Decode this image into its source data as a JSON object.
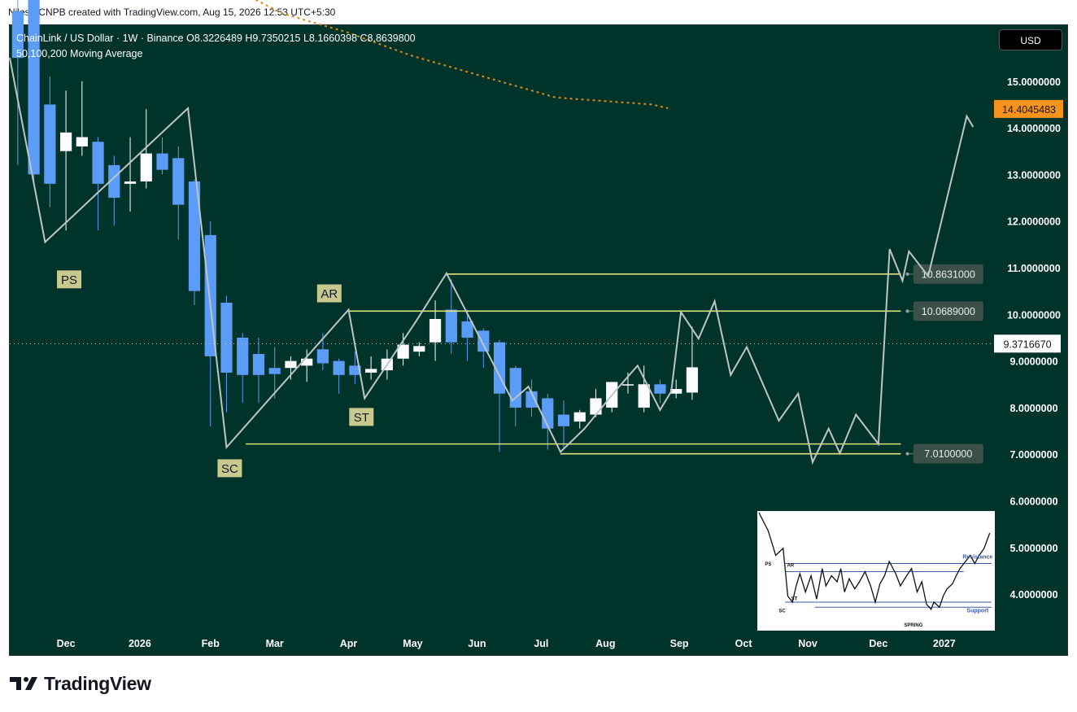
{
  "header": {
    "attribution": "Nilesh-CNPB created with TradingView.com, Aug 15, 2026 12:53 UTC+5:30"
  },
  "legend": {
    "line1": "ChainLink / US Dollar · 1W · Binance  O8.3226489  H9.7350215  L8.1660398  C8.8639800",
    "line2": "50,100,200 Moving Average"
  },
  "currency": "USD",
  "brand": {
    "name": "TradingView",
    "logo_icon": "tradingview-logo-icon"
  },
  "colors": {
    "background": "#00332a",
    "bull": "#ffffff",
    "bear": "#5b9cf6",
    "wyckoff_path": "#bfc5c5",
    "levels": "#e2e27a",
    "ma": "#d98a1a",
    "price_tag": "#f7931a"
  },
  "chart_data": {
    "type": "candlestick",
    "symbol": "ChainLink / US Dollar",
    "interval": "1W",
    "exchange": "Binance",
    "ohlc_last": {
      "open": 8.3226489,
      "high": 9.7350215,
      "low": 8.1660398,
      "close": 8.86398
    },
    "y_axis": {
      "ticks": [
        "15.0000000",
        "14.0000000",
        "13.0000000",
        "12.0000000",
        "11.0000000",
        "10.0000000",
        "9.0000000",
        "8.0000000",
        "7.0000000",
        "6.0000000",
        "5.0000000",
        "4.0000000"
      ],
      "range": [
        3.2,
        16.2
      ]
    },
    "x_axis": {
      "ticks": [
        {
          "label": "Dec",
          "t": 3
        },
        {
          "label": "2026",
          "t": 7.6
        },
        {
          "label": "Feb",
          "t": 12
        },
        {
          "label": "Mar",
          "t": 16
        },
        {
          "label": "Apr",
          "t": 20.6
        },
        {
          "label": "May",
          "t": 24.6
        },
        {
          "label": "Jun",
          "t": 28.6
        },
        {
          "label": "Jul",
          "t": 32.6
        },
        {
          "label": "Aug",
          "t": 36.6
        },
        {
          "label": "Sep",
          "t": 41.2
        },
        {
          "label": "Oct",
          "t": 45.2
        },
        {
          "label": "Nov",
          "t": 49.2
        },
        {
          "label": "Dec",
          "t": 53.6
        },
        {
          "label": "2027",
          "t": 57.7
        }
      ],
      "range": [
        -0.5,
        60.8
      ]
    },
    "candles": [
      {
        "t": 0,
        "o": 16.5,
        "h": 16.8,
        "l": 13.2,
        "c": 15.5
      },
      {
        "t": 1,
        "o": 16.8,
        "h": 17.0,
        "l": 12.8,
        "c": 13.0
      },
      {
        "t": 2,
        "o": 14.5,
        "h": 15.1,
        "l": 12.3,
        "c": 12.8
      },
      {
        "t": 3,
        "o": 13.5,
        "h": 14.8,
        "l": 11.8,
        "c": 13.9
      },
      {
        "t": 4,
        "o": 13.6,
        "h": 15.0,
        "l": 13.4,
        "c": 13.8
      },
      {
        "t": 5,
        "o": 13.7,
        "h": 13.8,
        "l": 11.8,
        "c": 12.8
      },
      {
        "t": 6,
        "o": 13.2,
        "h": 13.4,
        "l": 11.9,
        "c": 12.5
      },
      {
        "t": 7,
        "o": 12.8,
        "h": 13.8,
        "l": 12.2,
        "c": 12.85
      },
      {
        "t": 8,
        "o": 12.85,
        "h": 14.4,
        "l": 12.7,
        "c": 13.45
      },
      {
        "t": 9,
        "o": 13.45,
        "h": 13.8,
        "l": 13.0,
        "c": 13.1
      },
      {
        "t": 10,
        "o": 13.35,
        "h": 13.6,
        "l": 11.6,
        "c": 12.35
      },
      {
        "t": 11,
        "o": 12.85,
        "h": 12.9,
        "l": 10.2,
        "c": 10.5
      },
      {
        "t": 12,
        "o": 11.7,
        "h": 12.0,
        "l": 7.6,
        "c": 9.1
      },
      {
        "t": 13,
        "o": 10.25,
        "h": 10.4,
        "l": 7.9,
        "c": 8.75
      },
      {
        "t": 14,
        "o": 9.5,
        "h": 9.6,
        "l": 8.1,
        "c": 8.7
      },
      {
        "t": 15,
        "o": 9.15,
        "h": 9.5,
        "l": 8.1,
        "c": 8.7
      },
      {
        "t": 16,
        "o": 8.85,
        "h": 9.3,
        "l": 8.2,
        "c": 8.72
      },
      {
        "t": 17,
        "o": 8.85,
        "h": 9.1,
        "l": 8.6,
        "c": 9.0
      },
      {
        "t": 18,
        "o": 8.9,
        "h": 9.25,
        "l": 8.55,
        "c": 9.05
      },
      {
        "t": 19,
        "o": 9.25,
        "h": 9.6,
        "l": 8.8,
        "c": 8.95
      },
      {
        "t": 20,
        "o": 9.0,
        "h": 9.05,
        "l": 8.3,
        "c": 8.7
      },
      {
        "t": 21,
        "o": 8.9,
        "h": 9.2,
        "l": 8.5,
        "c": 8.7
      },
      {
        "t": 22,
        "o": 8.75,
        "h": 9.1,
        "l": 8.6,
        "c": 8.83
      },
      {
        "t": 23,
        "o": 8.8,
        "h": 9.25,
        "l": 8.6,
        "c": 9.05
      },
      {
        "t": 24,
        "o": 9.05,
        "h": 9.6,
        "l": 8.9,
        "c": 9.35
      },
      {
        "t": 25,
        "o": 9.2,
        "h": 9.4,
        "l": 9.1,
        "c": 9.32
      },
      {
        "t": 26,
        "o": 9.4,
        "h": 10.3,
        "l": 9.0,
        "c": 9.9
      },
      {
        "t": 27,
        "o": 10.1,
        "h": 10.75,
        "l": 9.15,
        "c": 9.4
      },
      {
        "t": 28,
        "o": 9.85,
        "h": 10.1,
        "l": 9.0,
        "c": 9.5
      },
      {
        "t": 29,
        "o": 9.65,
        "h": 9.7,
        "l": 8.85,
        "c": 9.2
      },
      {
        "t": 30,
        "o": 9.4,
        "h": 9.45,
        "l": 7.05,
        "c": 8.3
      },
      {
        "t": 31,
        "o": 8.85,
        "h": 8.9,
        "l": 7.6,
        "c": 8.0
      },
      {
        "t": 32,
        "o": 8.35,
        "h": 8.6,
        "l": 7.8,
        "c": 8.0
      },
      {
        "t": 33,
        "o": 8.2,
        "h": 8.3,
        "l": 7.1,
        "c": 7.55
      },
      {
        "t": 34,
        "o": 7.85,
        "h": 8.15,
        "l": 7.1,
        "c": 7.6
      },
      {
        "t": 35,
        "o": 7.7,
        "h": 7.95,
        "l": 7.55,
        "c": 7.9
      },
      {
        "t": 36,
        "o": 7.85,
        "h": 8.4,
        "l": 7.8,
        "c": 8.2
      },
      {
        "t": 37,
        "o": 8.0,
        "h": 8.5,
        "l": 7.9,
        "c": 8.55
      },
      {
        "t": 38,
        "o": 8.5,
        "h": 8.75,
        "l": 8.3,
        "c": 8.5
      },
      {
        "t": 39,
        "o": 8.0,
        "h": 8.9,
        "l": 7.9,
        "c": 8.5
      },
      {
        "t": 40,
        "o": 8.5,
        "h": 8.6,
        "l": 8.1,
        "c": 8.3
      },
      {
        "t": 41,
        "o": 8.3,
        "h": 8.6,
        "l": 8.2,
        "c": 8.4
      },
      {
        "t": 42,
        "o": 8.3226489,
        "h": 9.7350215,
        "l": 8.1660398,
        "c": 8.86398
      }
    ],
    "moving_average": {
      "name": "50,100,200 Moving Average",
      "points": [
        [
          14.5,
          16.8
        ],
        [
          16.5,
          16.45
        ],
        [
          20.5,
          16.05
        ],
        [
          24.5,
          15.55
        ],
        [
          28.5,
          15.15
        ],
        [
          31.5,
          14.85
        ],
        [
          33.5,
          14.65
        ],
        [
          37.5,
          14.55
        ],
        [
          39.5,
          14.5
        ],
        [
          40.5,
          14.42
        ]
      ]
    },
    "wyckoff_path": {
      "points": [
        [
          -0.5,
          15.5
        ],
        [
          1.7,
          11.55
        ],
        [
          10.6,
          14.42
        ],
        [
          13.0,
          7.15
        ],
        [
          20.6,
          10.1
        ],
        [
          21.6,
          8.2
        ],
        [
          24.8,
          9.85
        ],
        [
          26.7,
          10.88
        ],
        [
          30.8,
          8.15
        ],
        [
          31.8,
          8.45
        ],
        [
          33.8,
          7.05
        ],
        [
          35.3,
          7.55
        ],
        [
          37.2,
          8.35
        ],
        [
          38.6,
          8.9
        ],
        [
          40.0,
          7.95
        ],
        [
          40.7,
          8.35
        ],
        [
          41.3,
          10.05
        ],
        [
          42.4,
          9.48
        ],
        [
          43.4,
          10.28
        ],
        [
          44.4,
          8.7
        ],
        [
          45.4,
          9.3
        ],
        [
          47.4,
          7.72
        ],
        [
          48.6,
          8.3
        ],
        [
          49.5,
          6.83
        ],
        [
          50.5,
          7.55
        ],
        [
          51.2,
          7.02
        ],
        [
          52.2,
          7.85
        ],
        [
          53.6,
          7.22
        ],
        [
          54.3,
          11.4
        ],
        [
          55.1,
          10.72
        ],
        [
          55.5,
          11.35
        ],
        [
          56.7,
          10.82
        ],
        [
          59.1,
          14.25
        ],
        [
          59.5,
          14.02
        ]
      ]
    },
    "levels": [
      {
        "value": 10.8631,
        "t1": 26.7,
        "t2": 55.0,
        "label": "10.8631000",
        "tag_t": 57.8
      },
      {
        "value": 10.0689,
        "t1": 20.6,
        "t2": 55.0,
        "label": "10.0689000",
        "tag_t": 57.8
      },
      {
        "value": 7.22,
        "t1": 14.2,
        "t2": 55.0
      },
      {
        "value": 7.01,
        "t1": 33.8,
        "t2": 55.0,
        "label": "7.0100000",
        "tag_t": 57.8
      }
    ],
    "current_price": {
      "value": 9.371667,
      "label": "9.3716670"
    },
    "price_tag": {
      "value": 14.4045483,
      "label": "14.4045483"
    },
    "annotations": [
      {
        "text": "PS",
        "t": 3.2,
        "y": 10.75
      },
      {
        "text": "SC",
        "t": 13.2,
        "y": 6.7
      },
      {
        "text": "AR",
        "t": 19.4,
        "y": 10.45
      },
      {
        "text": "ST",
        "t": 21.4,
        "y": 7.8
      }
    ],
    "inset": {
      "labels": [
        "PS",
        "AR",
        "ST",
        "SC",
        "SPRING",
        "Resistance",
        "Support"
      ],
      "path": [
        [
          0,
          0
        ],
        [
          0.1,
          0.18
        ],
        [
          0.18,
          0.42
        ],
        [
          0.26,
          0.35
        ],
        [
          0.31,
          0.82
        ],
        [
          0.36,
          0.88
        ],
        [
          0.4,
          0.72
        ],
        [
          0.44,
          0.6
        ],
        [
          0.5,
          0.78
        ],
        [
          0.56,
          0.62
        ],
        [
          0.62,
          0.85
        ],
        [
          0.68,
          0.55
        ],
        [
          0.72,
          0.72
        ],
        [
          0.78,
          0.62
        ],
        [
          0.84,
          0.68
        ],
        [
          0.88,
          0.55
        ],
        [
          0.92,
          0.78
        ],
        [
          0.97,
          0.65
        ],
        [
          1.03,
          0.75
        ],
        [
          1.08,
          0.68
        ],
        [
          1.14,
          0.58
        ],
        [
          1.2,
          0.72
        ],
        [
          1.25,
          0.88
        ],
        [
          1.3,
          0.7
        ],
        [
          1.35,
          0.62
        ],
        [
          1.4,
          0.48
        ],
        [
          1.47,
          0.6
        ],
        [
          1.52,
          0.72
        ],
        [
          1.58,
          0.63
        ],
        [
          1.64,
          0.55
        ],
        [
          1.7,
          0.78
        ],
        [
          1.75,
          0.68
        ],
        [
          1.8,
          0.9
        ],
        [
          1.85,
          0.95
        ],
        [
          1.88,
          0.88
        ],
        [
          1.94,
          0.93
        ],
        [
          1.98,
          0.82
        ],
        [
          2.02,
          0.75
        ],
        [
          2.08,
          0.7
        ],
        [
          2.12,
          0.62
        ],
        [
          2.16,
          0.55
        ],
        [
          2.22,
          0.48
        ],
        [
          2.27,
          0.42
        ],
        [
          2.32,
          0.5
        ],
        [
          2.36,
          0.43
        ],
        [
          2.42,
          0.35
        ],
        [
          2.48,
          0.2
        ]
      ]
    }
  }
}
